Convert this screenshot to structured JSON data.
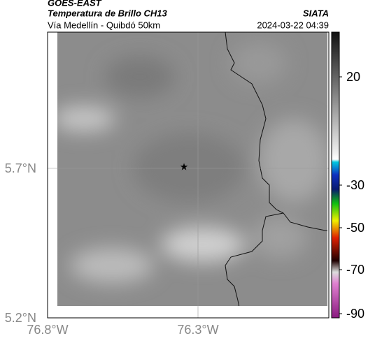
{
  "header": {
    "title": "GOES-EAST",
    "subtitle": "Temperatura de Brillo CH13",
    "region": "Vía Medellín - Quibdó 50km",
    "source": "SIATA",
    "timestamp": "2024-03-22 04:39"
  },
  "map": {
    "lat_labels": [
      "5.7°N",
      "5.2°N"
    ],
    "lon_labels": [
      "76.8°W",
      "76.3°W"
    ]
  },
  "colorbar": {
    "ticks": [
      20,
      -30,
      -50,
      -70,
      -90
    ]
  }
}
